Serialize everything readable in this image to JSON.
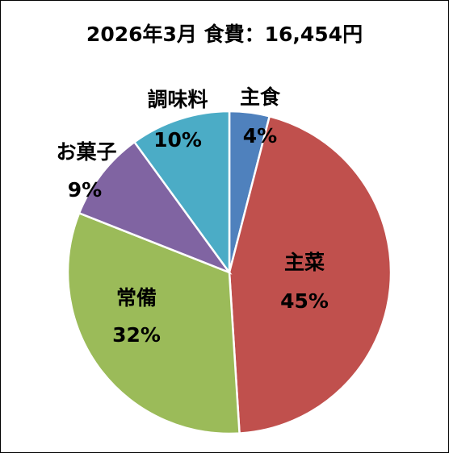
{
  "chart_data": {
    "type": "pie",
    "title": "2026年3月 食費：16,454円",
    "categories": [
      "主食",
      "主菜",
      "常備",
      "お菓子",
      "調味料"
    ],
    "values": [
      4,
      45,
      32,
      9,
      10
    ],
    "labels": [
      "4%",
      "45%",
      "32%",
      "9%",
      "10%"
    ],
    "colors": [
      "#4F81BD",
      "#C0504D",
      "#9BBB59",
      "#8064A2",
      "#4BACC6"
    ],
    "start": "12 o'clock, clockwise",
    "legend": "none (labels on slices)"
  }
}
